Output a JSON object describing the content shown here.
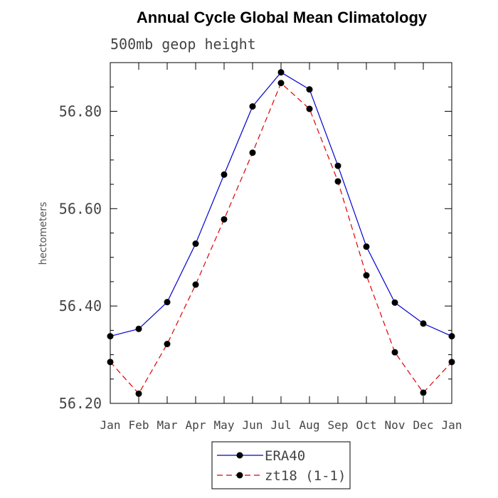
{
  "chart_data": {
    "type": "line",
    "title": "Annual Cycle Global Mean Climatology",
    "subtitle": "500mb geop height",
    "xlabel": "",
    "ylabel": "hectometers",
    "categories": [
      "Jan",
      "Feb",
      "Mar",
      "Apr",
      "May",
      "Jun",
      "Jul",
      "Aug",
      "Sep",
      "Oct",
      "Nov",
      "Dec",
      "Jan"
    ],
    "ylim": [
      56.2,
      56.9
    ],
    "yticks": [
      56.2,
      56.4,
      56.6,
      56.8
    ],
    "ytick_labels": [
      "56.20",
      "56.40",
      "56.60",
      "56.80"
    ],
    "legend_position": "bottom",
    "series": [
      {
        "name": "ERA40",
        "color": "#0000cc",
        "dash": "solid",
        "values": [
          56.338,
          56.353,
          56.408,
          56.528,
          56.67,
          56.81,
          56.88,
          56.845,
          56.688,
          56.522,
          56.407,
          56.364,
          56.338
        ]
      },
      {
        "name": "zt18 (1-1)",
        "color": "#dd0000",
        "dash": "dashed",
        "values": [
          56.285,
          56.22,
          56.322,
          56.444,
          56.578,
          56.715,
          56.858,
          56.805,
          56.656,
          56.463,
          56.305,
          56.222,
          56.285
        ]
      }
    ]
  }
}
